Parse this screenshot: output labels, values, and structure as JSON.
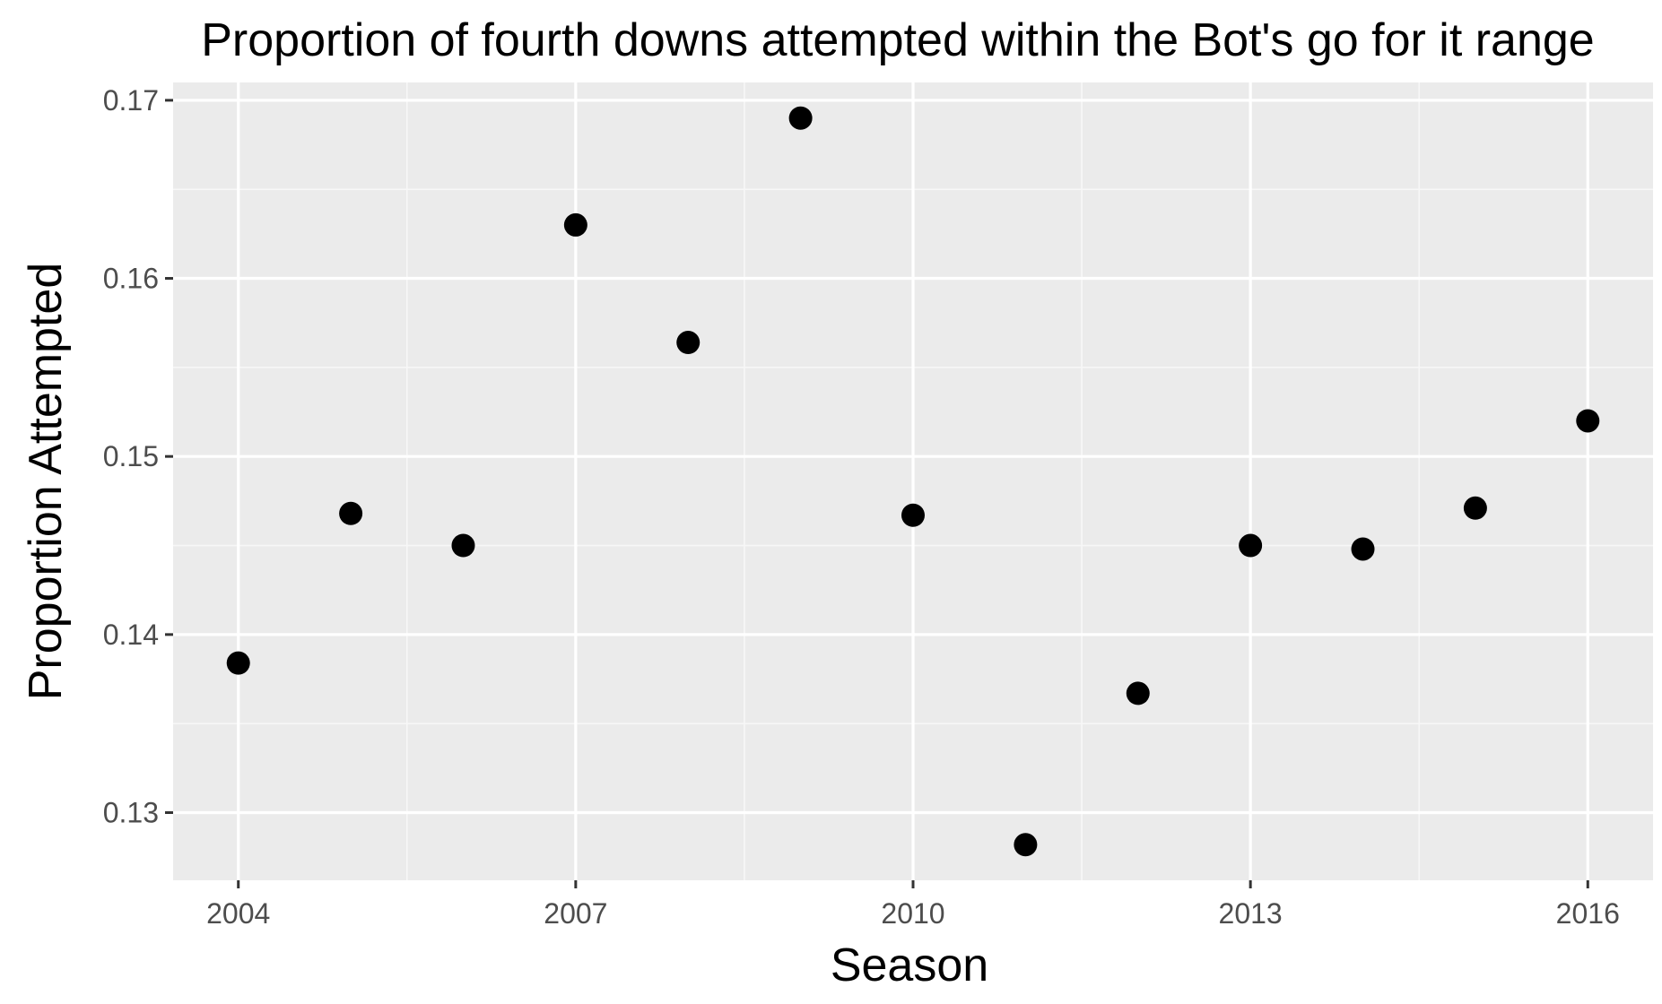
{
  "chart_data": {
    "type": "scatter",
    "title": "Proportion of fourth downs attempted within the Bot's go for it range",
    "xlabel": "Season",
    "ylabel": "Proportion Attempted",
    "xlim": [
      2003.42,
      2016.58
    ],
    "ylim": [
      0.1262,
      0.171
    ],
    "x_ticks": [
      2004,
      2007,
      2010,
      2013,
      2016
    ],
    "x_minor_ticks": [
      2005.5,
      2008.5,
      2011.5,
      2014.5
    ],
    "x_tick_labels": [
      "2004",
      "2007",
      "2010",
      "2013",
      "2016"
    ],
    "y_ticks": [
      0.13,
      0.14,
      0.15,
      0.16,
      0.17
    ],
    "y_minor_ticks": [
      0.135,
      0.145,
      0.155,
      0.165
    ],
    "y_tick_labels": [
      "0.13",
      "0.14",
      "0.15",
      "0.16",
      "0.17"
    ],
    "grid": true,
    "legend": "none",
    "series": [
      {
        "x": [
          2004,
          2005,
          2006,
          2007,
          2008,
          2009,
          2010,
          2011,
          2012,
          2013,
          2014,
          2015,
          2016
        ],
        "y": [
          0.1384,
          0.1468,
          0.145,
          0.163,
          0.1564,
          0.169,
          0.1467,
          0.1282,
          0.1367,
          0.145,
          0.1448,
          0.1471,
          0.152
        ]
      }
    ]
  },
  "colors": {
    "panel_background": "#ebebeb",
    "grid_major": "#ffffff",
    "grid_minor": "#f7f7f7",
    "point": "#000000",
    "tick_text": "#4d4d4d",
    "title_text": "#000000"
  }
}
